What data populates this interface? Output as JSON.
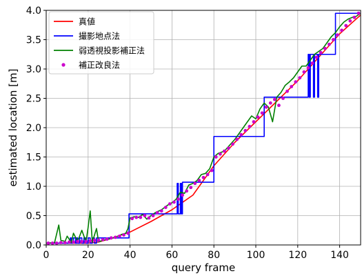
{
  "chart_data": {
    "type": "line",
    "xlabel": "query frame",
    "ylabel": "estimated location [m]",
    "xlim": [
      0,
      150
    ],
    "ylim": [
      0,
      4.0
    ],
    "xticks": [
      0,
      20,
      40,
      60,
      80,
      100,
      120,
      140
    ],
    "yticks": [
      0.0,
      0.5,
      1.0,
      1.5,
      2.0,
      2.5,
      3.0,
      3.5,
      4.0
    ],
    "xtick_labels": [
      "0",
      "20",
      "40",
      "60",
      "80",
      "100",
      "120",
      "140"
    ],
    "ytick_labels": [
      "0.0",
      "0.5",
      "1.0",
      "1.5",
      "2.0",
      "2.5",
      "3.0",
      "3.5",
      "4.0"
    ],
    "grid": true,
    "legend_position": "upper-left",
    "series": [
      {
        "name": "真値",
        "style": "line",
        "color": "#ff0000",
        "x": [
          0,
          10,
          20,
          25,
          30,
          40,
          50,
          60,
          70,
          80,
          90,
          100,
          110,
          120,
          130,
          140,
          150
        ],
        "y": [
          0.03,
          0.03,
          0.03,
          0.05,
          0.1,
          0.22,
          0.4,
          0.6,
          0.85,
          1.35,
          1.75,
          2.1,
          2.45,
          2.8,
          3.2,
          3.6,
          3.92
        ]
      },
      {
        "name": "撮影地点法",
        "style": "step",
        "color": "#0000ff",
        "x": [
          0,
          11,
          11.5,
          12,
          13,
          14,
          14.5,
          15,
          16,
          17,
          18,
          19,
          20,
          21,
          22,
          23,
          24,
          25,
          39,
          39.5,
          61,
          62,
          62.5,
          63,
          64,
          64.5,
          65,
          74,
          75,
          75.5,
          76,
          79,
          79.5,
          80,
          81,
          103,
          104,
          124,
          125,
          125.5,
          126,
          127,
          127.5,
          128,
          129,
          129.5,
          130,
          137,
          138,
          150
        ],
        "y": [
          0.03,
          0.03,
          0.12,
          0.03,
          0.12,
          0.03,
          0.12,
          0.03,
          0.12,
          0.03,
          0.12,
          0.03,
          0.12,
          0.03,
          0.12,
          0.03,
          0.12,
          0.12,
          0.12,
          0.53,
          0.53,
          0.53,
          1.05,
          0.53,
          1.05,
          0.53,
          1.07,
          1.07,
          1.07,
          1.07,
          1.07,
          1.07,
          1.07,
          1.85,
          1.85,
          1.85,
          2.52,
          2.52,
          3.25,
          2.52,
          3.25,
          3.25,
          2.52,
          3.25,
          3.25,
          2.52,
          3.25,
          3.25,
          3.95,
          3.95
        ]
      },
      {
        "name": "弱透視投影補正法",
        "style": "line",
        "color": "#008000",
        "x": [
          0,
          4,
          6,
          7,
          9,
          10,
          12,
          13,
          15,
          17,
          19,
          20,
          21,
          22,
          24,
          25,
          27,
          30,
          33,
          36,
          38,
          39,
          40,
          42,
          44,
          46,
          48,
          50,
          52,
          55,
          58,
          60,
          62,
          64,
          66,
          68,
          70,
          72,
          74,
          76,
          78,
          80,
          82,
          85,
          88,
          90,
          94,
          98,
          100,
          102,
          104,
          106,
          108,
          110,
          112,
          114,
          116,
          118,
          120,
          122,
          124,
          126,
          128,
          130,
          132,
          134,
          136,
          138,
          140,
          142,
          144,
          146,
          148,
          150
        ],
        "y": [
          0.03,
          0.04,
          0.34,
          0.08,
          0.06,
          0.15,
          0.04,
          0.2,
          0.06,
          0.25,
          0.05,
          0.3,
          0.58,
          0.05,
          0.28,
          0.05,
          0.08,
          0.1,
          0.13,
          0.18,
          0.2,
          0.28,
          0.46,
          0.48,
          0.47,
          0.52,
          0.44,
          0.5,
          0.55,
          0.6,
          0.68,
          0.72,
          0.78,
          0.9,
          0.88,
          1.02,
          1.05,
          1.1,
          1.2,
          1.22,
          1.3,
          1.5,
          1.56,
          1.6,
          1.72,
          1.8,
          2.0,
          2.2,
          2.15,
          2.32,
          2.42,
          2.35,
          2.1,
          2.52,
          2.6,
          2.72,
          2.78,
          2.85,
          2.95,
          3.05,
          3.05,
          3.15,
          3.25,
          3.3,
          3.35,
          3.45,
          3.55,
          3.62,
          3.72,
          3.8,
          3.85,
          3.88,
          3.9,
          3.95
        ]
      },
      {
        "name": "補正改良法",
        "style": "marker",
        "color": "#cc00cc",
        "x": [
          1,
          3,
          5,
          7,
          9,
          11,
          13,
          15,
          17,
          19,
          21,
          23,
          25,
          27,
          29,
          31,
          33,
          35,
          37,
          39,
          41,
          43,
          45,
          47,
          49,
          51,
          53,
          55,
          57,
          59,
          61,
          63,
          65,
          67,
          69,
          71,
          73,
          75,
          77,
          79,
          81,
          83,
          85,
          87,
          89,
          91,
          93,
          95,
          97,
          99,
          101,
          103,
          105,
          107,
          109,
          111,
          113,
          115,
          117,
          119,
          121,
          123,
          125,
          127,
          129,
          131,
          133,
          135,
          137,
          139,
          141,
          143,
          145,
          147,
          149
        ],
        "y": [
          0.03,
          0.03,
          0.03,
          0.04,
          0.04,
          0.05,
          0.05,
          0.06,
          0.06,
          0.06,
          0.07,
          0.08,
          0.08,
          0.09,
          0.1,
          0.12,
          0.13,
          0.15,
          0.17,
          0.2,
          0.45,
          0.47,
          0.47,
          0.5,
          0.46,
          0.5,
          0.55,
          0.58,
          0.64,
          0.7,
          0.73,
          0.78,
          0.85,
          0.92,
          0.98,
          1.05,
          1.1,
          1.15,
          1.2,
          1.27,
          1.5,
          1.55,
          1.6,
          1.65,
          1.72,
          1.8,
          1.88,
          1.95,
          2.02,
          2.1,
          2.18,
          2.25,
          2.35,
          2.42,
          2.48,
          2.38,
          2.5,
          2.62,
          2.7,
          2.78,
          2.85,
          2.95,
          3.02,
          3.1,
          3.2,
          3.28,
          3.35,
          3.42,
          3.5,
          3.58,
          3.66,
          3.74,
          3.82,
          3.88,
          3.95
        ]
      }
    ]
  }
}
